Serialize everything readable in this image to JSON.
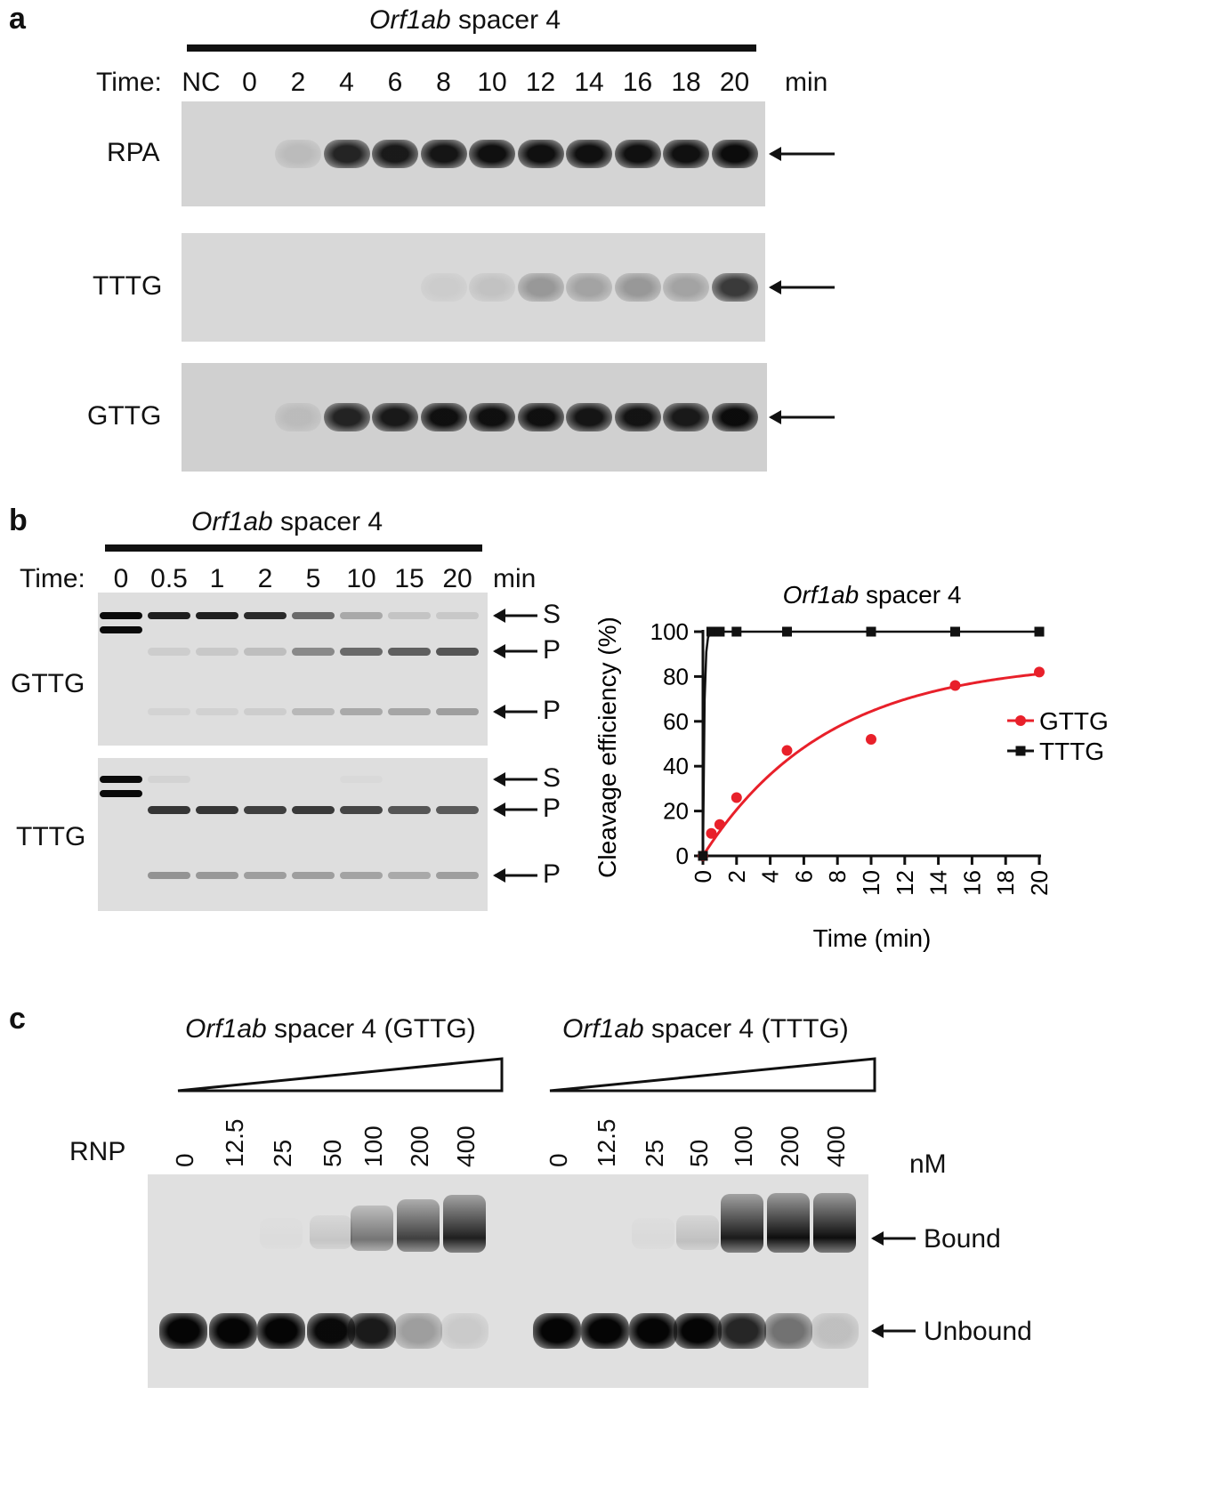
{
  "panel_a": {
    "letter": "a",
    "title_gene": "Orf1ab",
    "title_rest": " spacer 4",
    "time_label": "Time:",
    "lanes": [
      "NC",
      "0",
      "2",
      "4",
      "6",
      "8",
      "10",
      "12",
      "14",
      "16",
      "18",
      "20"
    ],
    "unit": "min",
    "rows": [
      {
        "label": "RPA",
        "intensity": [
          0,
          0,
          0.12,
          0.85,
          0.9,
          0.92,
          0.95,
          0.95,
          0.95,
          0.95,
          0.95,
          0.97
        ]
      },
      {
        "label": "TTTG",
        "intensity": [
          0,
          0,
          0,
          0,
          0,
          0.06,
          0.1,
          0.3,
          0.25,
          0.3,
          0.25,
          0.75
        ]
      },
      {
        "label": "GTTG",
        "intensity": [
          0,
          0,
          0.1,
          0.85,
          0.9,
          0.95,
          0.95,
          0.95,
          0.92,
          0.93,
          0.9,
          0.97
        ]
      }
    ]
  },
  "panel_b": {
    "letter": "b",
    "title_gene": "Orf1ab",
    "title_rest": " spacer 4",
    "time_label": "Time:",
    "lanes": [
      "0",
      "0.5",
      "1",
      "2",
      "5",
      "10",
      "15",
      "20"
    ],
    "unit": "min",
    "gels": [
      {
        "label": "GTTG",
        "S": [
          1,
          0.9,
          0.9,
          0.85,
          0.55,
          0.25,
          0.12,
          0.1
        ],
        "P1": [
          0,
          0.08,
          0.1,
          0.15,
          0.4,
          0.55,
          0.6,
          0.65
        ],
        "P2": [
          0,
          0.05,
          0.06,
          0.08,
          0.18,
          0.25,
          0.27,
          0.3
        ]
      },
      {
        "label": "TTTG",
        "S": [
          1,
          0.05,
          0,
          0,
          0,
          0.02,
          0,
          0
        ],
        "P1": [
          0,
          0.8,
          0.8,
          0.75,
          0.78,
          0.72,
          0.65,
          0.62
        ],
        "P2": [
          0,
          0.35,
          0.33,
          0.3,
          0.3,
          0.28,
          0.25,
          0.3
        ]
      }
    ],
    "arrow_labels": [
      "S",
      "P",
      "P",
      "S",
      "P",
      "P"
    ]
  },
  "chart_data": {
    "type": "scatter",
    "title_gene": "Orf1ab",
    "title_rest": " spacer 4",
    "xlabel": "Time (min)",
    "ylabel": "Cleavage efficiency (%)",
    "xlim": [
      0,
      20
    ],
    "ylim": [
      0,
      100
    ],
    "xticks": [
      "0",
      "2",
      "4",
      "6",
      "8",
      "10",
      "12",
      "14",
      "16",
      "18",
      "20"
    ],
    "yticks": [
      "0",
      "20",
      "40",
      "60",
      "80",
      "100"
    ],
    "legend": "right",
    "series": [
      {
        "name": "GTTG",
        "color": "#e8202a",
        "marker": "circle",
        "x": [
          0,
          0.5,
          1,
          2,
          5,
          10,
          15,
          20
        ],
        "y": [
          0,
          10,
          14,
          26,
          47,
          52,
          76,
          82
        ],
        "fit_plateau": 87,
        "fit_k": 0.135
      },
      {
        "name": "TTTG",
        "color": "#111111",
        "marker": "square",
        "x": [
          0,
          0.5,
          1,
          2,
          5,
          10,
          15,
          20
        ],
        "y": [
          0,
          100,
          100,
          100,
          100,
          100,
          100,
          100
        ],
        "fit_plateau": 100,
        "fit_k": 12
      }
    ]
  },
  "panel_c": {
    "letter": "c",
    "left_title_gene": "Orf1ab",
    "left_title_rest": " spacer 4 (GTTG)",
    "right_title_gene": "Orf1ab",
    "right_title_rest": " spacer 4 (TTTG)",
    "rnp_label": "RNP",
    "concentrations": [
      "0",
      "12.5",
      "25",
      "50",
      "100",
      "200",
      "400"
    ],
    "unit": "nM",
    "bound_label": "Bound",
    "unbound_label": "Unbound",
    "left_bound": [
      0,
      0,
      0.02,
      0.12,
      0.5,
      0.75,
      0.9
    ],
    "left_unbound": [
      1,
      1,
      1,
      0.98,
      0.9,
      0.3,
      0.1
    ],
    "right_bound": [
      0,
      0,
      0.03,
      0.15,
      0.92,
      0.98,
      0.98
    ],
    "right_unbound": [
      1,
      1,
      1,
      1,
      0.85,
      0.5,
      0.15
    ]
  }
}
